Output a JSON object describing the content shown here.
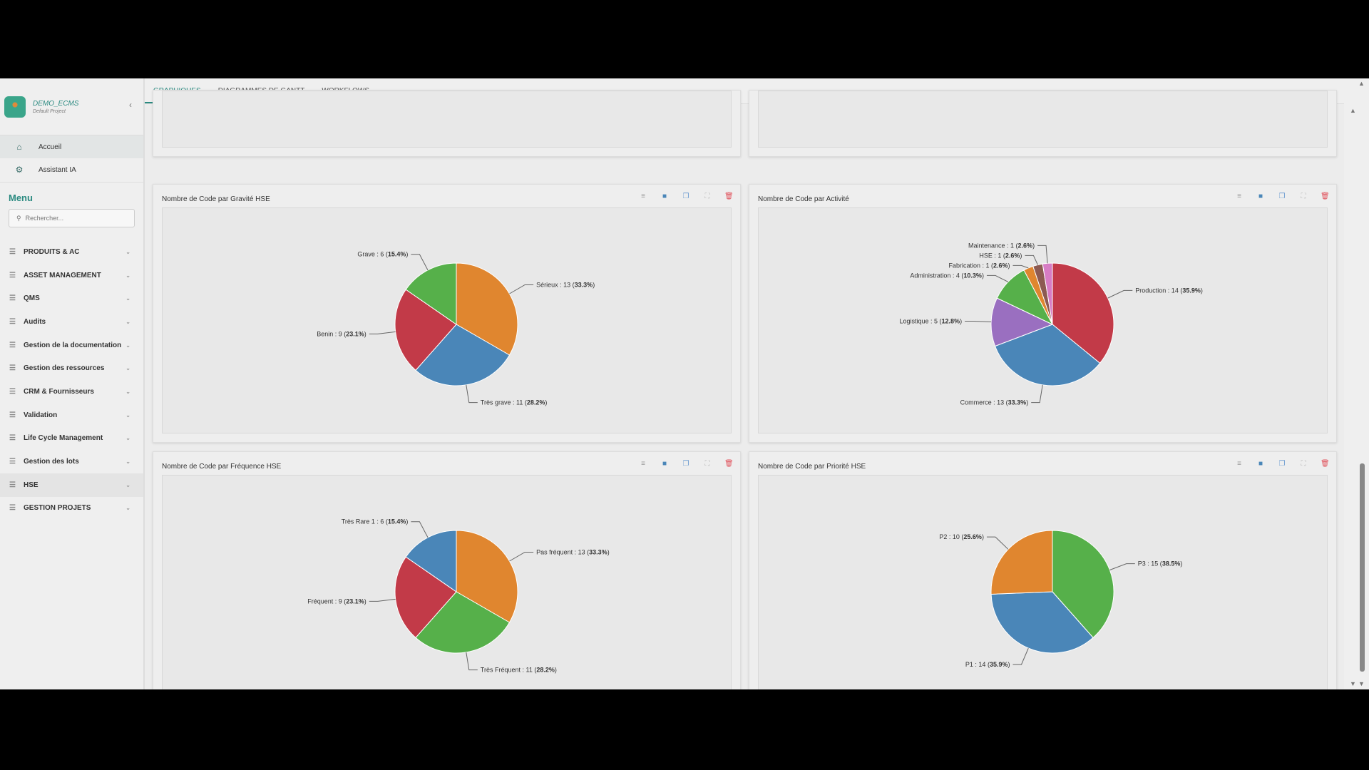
{
  "brand": {
    "name": "DEMO_ECMS",
    "subtitle": "Default Project"
  },
  "nav": [
    {
      "label": "Accueil",
      "icon": "home-icon"
    },
    {
      "label": "Assistant IA",
      "icon": "robot-icon"
    }
  ],
  "menu": {
    "title": "Menu",
    "search_placeholder": "Rechercher...",
    "items": [
      "PRODUITS & AC",
      "ASSET MANAGEMENT",
      "QMS",
      "Audits",
      "Gestion de la documentation",
      "Gestion des ressources",
      "CRM & Fournisseurs",
      "Validation",
      "Life Cycle Management",
      "Gestion des lots",
      "HSE",
      "GESTION PROJETS"
    ]
  },
  "tabs": [
    "GRAPHIQUES",
    "DIAGRAMMES DE GANTT",
    "WORKFLOWS"
  ],
  "colors": {
    "accent": "#2a8a80",
    "orange": "#e0862f",
    "blue": "#4a86b8",
    "red": "#c23a48",
    "green": "#56b04a",
    "purple": "#9a6fc0",
    "brown": "#8c5a52",
    "pink": "#d77cc4"
  },
  "chart_data": [
    {
      "type": "pie",
      "title": "Nombre de Code par Gravité HSE",
      "labels": [
        "Sérieux",
        "Très grave",
        "Benin",
        "Grave"
      ],
      "values": [
        13,
        11,
        9,
        6
      ],
      "percents": [
        "33.3%",
        "28.2%",
        "23.1%",
        "15.4%"
      ],
      "colors": [
        "#e0862f",
        "#4a86b8",
        "#c23a48",
        "#56b04a"
      ]
    },
    {
      "type": "pie",
      "title": "Nombre de Code par Activité",
      "labels": [
        "Production",
        "Commerce",
        "Logistique",
        "Administration",
        "Fabrication",
        "HSE",
        "Maintenance"
      ],
      "values": [
        14,
        13,
        5,
        4,
        1,
        1,
        1
      ],
      "percents": [
        "35.9%",
        "33.3%",
        "12.8%",
        "10.3%",
        "2.6%",
        "2.6%",
        "2.6%"
      ],
      "colors": [
        "#c23a48",
        "#4a86b8",
        "#9a6fc0",
        "#56b04a",
        "#e0862f",
        "#8c5a52",
        "#d77cc4"
      ]
    },
    {
      "type": "pie",
      "title": "Nombre de Code par Fréquence HSE",
      "labels": [
        "Pas fréquent",
        "Très Fréquent",
        "Fréquent",
        "Très Rare 1"
      ],
      "values": [
        13,
        11,
        9,
        6
      ],
      "percents": [
        "33.3%",
        "28.2%",
        "23.1%",
        "15.4%"
      ],
      "colors": [
        "#e0862f",
        "#56b04a",
        "#c23a48",
        "#4a86b8"
      ]
    },
    {
      "type": "pie",
      "title": "Nombre de Code par Priorité HSE",
      "labels": [
        "P3",
        "P1",
        "P2"
      ],
      "values": [
        15,
        14,
        10
      ],
      "percents": [
        "38.5%",
        "35.9%",
        "25.6%"
      ],
      "colors": [
        "#56b04a",
        "#4a86b8",
        "#e0862f"
      ]
    }
  ]
}
